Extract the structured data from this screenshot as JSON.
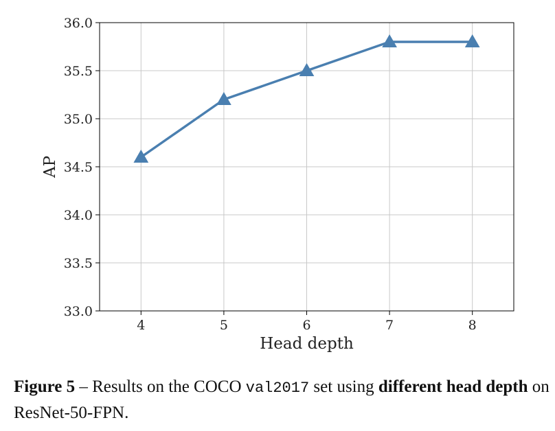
{
  "chart_data": {
    "type": "line",
    "x": [
      4,
      5,
      6,
      7,
      8
    ],
    "series": [
      {
        "values": [
          34.6,
          35.2,
          35.5,
          35.8,
          35.8
        ],
        "color": "#4a7fb0",
        "marker": "triangle"
      }
    ],
    "xlabel": "Head depth",
    "ylabel": "AP",
    "xlim": [
      3.5,
      8.5
    ],
    "ylim": [
      33.0,
      36.0
    ],
    "xticks": [
      "4",
      "5",
      "6",
      "7",
      "8"
    ],
    "yticks": [
      "33.0",
      "33.5",
      "34.0",
      "34.5",
      "35.0",
      "35.5",
      "36.0"
    ],
    "grid": true
  },
  "caption": {
    "figure_label": "Figure 5",
    "part1": " – Results on the COCO ",
    "code": "val2017",
    "part2": " set using ",
    "bold": "different head depth",
    "part3": " on ResNet-50-FPN."
  }
}
